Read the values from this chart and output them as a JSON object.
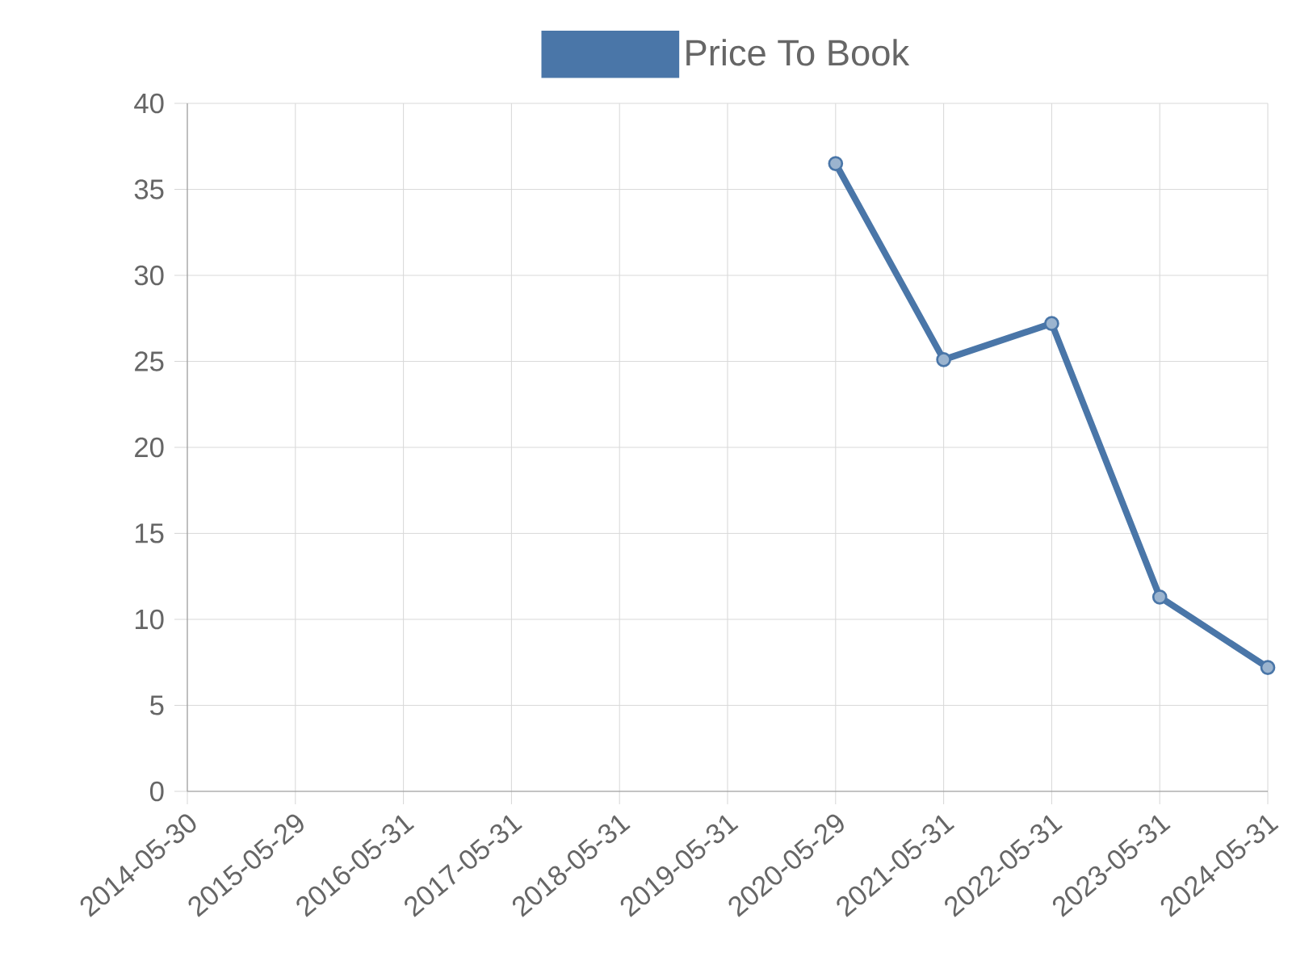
{
  "chart_data": {
    "type": "line",
    "categories": [
      "2014-05-30",
      "2015-05-29",
      "2016-05-31",
      "2017-05-31",
      "2018-05-31",
      "2019-05-31",
      "2020-05-29",
      "2021-05-31",
      "2022-05-31",
      "2023-05-31",
      "2024-05-31"
    ],
    "series": [
      {
        "name": "Price To Book",
        "color": "#4a76a8",
        "values": [
          null,
          null,
          null,
          null,
          null,
          null,
          36.5,
          25.1,
          27.2,
          11.3,
          7.2
        ]
      }
    ],
    "ylim": [
      0,
      40
    ],
    "yticks": [
      0,
      5,
      10,
      15,
      20,
      25,
      30,
      35,
      40
    ],
    "grid": true,
    "legend": "top",
    "marker": "circle",
    "line_style": "solid"
  }
}
